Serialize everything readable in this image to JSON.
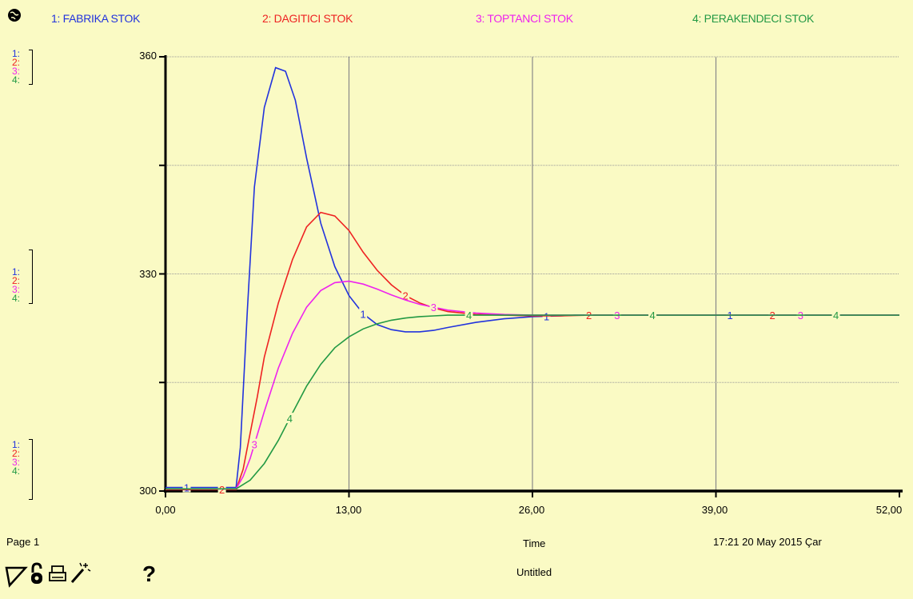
{
  "legend": {
    "items": [
      {
        "label": "1: FABRIKA STOK",
        "color": "#2233dd"
      },
      {
        "label": "2: DAGITICI STOK",
        "color": "#ee2222"
      },
      {
        "label": "3: TOPTANCI STOK",
        "color": "#ee22ee"
      },
      {
        "label": "4: PERAKENDECI STOK",
        "color": "#229944"
      }
    ]
  },
  "axis_keys": [
    "1:",
    "2:",
    "3:",
    "4:"
  ],
  "footer": {
    "page": "Page 1",
    "xlabel": "Time",
    "timestamp": "17:21   20 May 2015 Çar",
    "title": "Untitled"
  },
  "toolbar": {
    "help_label": "?"
  },
  "chart_data": {
    "type": "line",
    "title": "",
    "xlabel": "Time",
    "ylabel": "",
    "xlim": [
      0,
      52
    ],
    "ylim": [
      300,
      360
    ],
    "xticks": [
      "0,00",
      "13,00",
      "26,00",
      "39,00",
      "52,00"
    ],
    "yticks": [
      "300",
      "330",
      "360"
    ],
    "grid": true,
    "series": [
      {
        "name": "1: FABRIKA STOK",
        "marker": "1",
        "color": "#2233dd",
        "x": [
          0,
          3,
          5,
          5.3,
          5.8,
          6.3,
          7,
          7.8,
          8.5,
          9.2,
          10,
          11,
          12,
          13,
          14,
          15,
          16,
          17,
          18,
          19,
          20,
          22,
          24,
          26,
          28,
          29,
          30,
          32,
          35,
          38,
          41,
          44,
          47,
          50,
          52
        ],
        "y": [
          300.5,
          300.5,
          300.5,
          306,
          325,
          342,
          353,
          358.5,
          358,
          354,
          346,
          337,
          331,
          327,
          324.5,
          323,
          322.3,
          322,
          322,
          322.2,
          322.6,
          323.3,
          323.8,
          324.1,
          324.2,
          324.3,
          324.3,
          324.3,
          324.3,
          324.3,
          324.3,
          324.3,
          324.3,
          324.3,
          324.3
        ],
        "marker_x": [
          1.5,
          14,
          27,
          40
        ]
      },
      {
        "name": "2: DAGITICI STOK",
        "marker": "2",
        "color": "#ee2222",
        "x": [
          0,
          3,
          5,
          5.5,
          6,
          6.5,
          7,
          8,
          9,
          10,
          11,
          12,
          13,
          14,
          15,
          16,
          17,
          18,
          19,
          20,
          22,
          24,
          26,
          28,
          30,
          33,
          36,
          40,
          44,
          48,
          52
        ],
        "y": [
          300.2,
          300.2,
          300.2,
          303,
          308,
          313,
          318.5,
          326,
          332,
          336.5,
          338.5,
          338,
          336,
          333,
          330.5,
          328.5,
          327,
          326,
          325.3,
          324.8,
          324.4,
          324.3,
          324.2,
          324.2,
          324.3,
          324.3,
          324.3,
          324.3,
          324.3,
          324.3,
          324.3
        ],
        "marker_x": [
          4,
          17,
          30,
          43
        ]
      },
      {
        "name": "3: TOPTANCI STOK",
        "marker": "3",
        "color": "#ee22ee",
        "x": [
          0,
          3,
          5,
          5.5,
          6,
          7,
          8,
          9,
          10,
          11,
          12,
          13,
          14,
          15,
          16,
          17,
          18,
          19,
          20,
          22,
          24,
          26,
          28,
          30,
          33,
          36,
          40,
          44,
          48,
          52
        ],
        "y": [
          300.3,
          300.3,
          300.3,
          302,
          304.5,
          311,
          317,
          321.8,
          325.4,
          327.7,
          328.8,
          329,
          328.6,
          327.9,
          327.1,
          326.4,
          325.8,
          325.4,
          325,
          324.6,
          324.4,
          324.3,
          324.3,
          324.3,
          324.3,
          324.3,
          324.3,
          324.3,
          324.3,
          324.3
        ],
        "marker_x": [
          6.3,
          19,
          32,
          45
        ]
      },
      {
        "name": "4: PERAKENDECI STOK",
        "marker": "4",
        "color": "#229944",
        "x": [
          0,
          3,
          5,
          6,
          7,
          8,
          9,
          10,
          11,
          12,
          13,
          14,
          15,
          16,
          17,
          18,
          19,
          20,
          21,
          22,
          24,
          26,
          28,
          30,
          33,
          36,
          40,
          44,
          48,
          52
        ],
        "y": [
          300.3,
          300.3,
          300.3,
          301.5,
          303.8,
          307,
          310.8,
          314.5,
          317.5,
          319.8,
          321.3,
          322.4,
          323.1,
          323.6,
          323.9,
          324.1,
          324.2,
          324.3,
          324.3,
          324.3,
          324.3,
          324.3,
          324.3,
          324.3,
          324.3,
          324.3,
          324.3,
          324.3,
          324.3,
          324.3
        ],
        "marker_x": [
          8.8,
          21.5,
          34.5,
          47.5
        ]
      }
    ]
  }
}
